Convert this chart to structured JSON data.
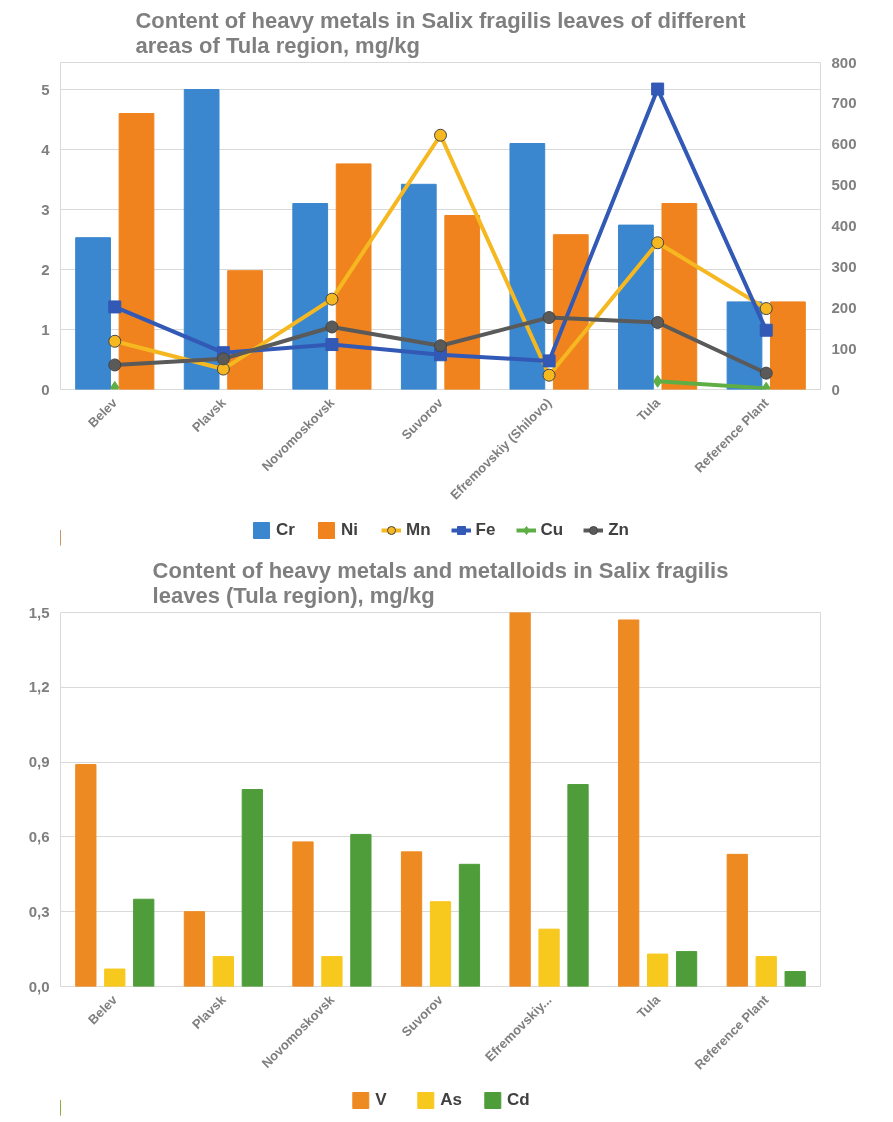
{
  "chart_data": [
    {
      "type": "bar",
      "title": "Content of heavy metals in Salix fragilis leaves of different areas of Tula region, mg/kg",
      "categories": [
        "Belev",
        "Plavsk",
        "Novomoskovsk",
        "Suvorov",
        "Efremovskiy (Shilovo)",
        "Tula",
        "Reference Plant"
      ],
      "series": [
        {
          "name": "Cr",
          "type": "bar",
          "color": "#3a86cf",
          "values": [
            2.53,
            5.0,
            3.1,
            3.42,
            4.1,
            2.74,
            1.46
          ]
        },
        {
          "name": "Ni",
          "type": "bar",
          "color": "#f0831e",
          "values": [
            4.6,
            1.98,
            3.76,
            2.9,
            2.58,
            3.1,
            1.46
          ]
        },
        {
          "name": "Mn",
          "type": "line",
          "axis": "y2",
          "marker": "circle",
          "color": "#f5b820",
          "values": [
            118,
            50,
            221,
            622,
            35,
            359,
            198
          ]
        },
        {
          "name": "Fe",
          "type": "line",
          "axis": "y2",
          "marker": "square",
          "color": "#3259b5",
          "values": [
            202,
            90,
            110,
            85,
            70,
            735,
            145
          ]
        },
        {
          "name": "Cu",
          "type": "line",
          "axis": "y2",
          "marker": "diamond",
          "color": "#5fae45",
          "values": [
            5,
            null,
            null,
            null,
            null,
            20,
            3
          ]
        },
        {
          "name": "Zn",
          "type": "line",
          "axis": "y2",
          "marker": "circle",
          "color": "#5a5a5a",
          "values": [
            60,
            75,
            153,
            107,
            176,
            164,
            40
          ]
        }
      ],
      "ylim": [
        0,
        5.45
      ],
      "yticks": [
        0,
        1,
        2,
        3,
        4,
        5
      ],
      "y2lim": [
        0,
        800
      ],
      "y2ticks": [
        0,
        100,
        200,
        300,
        400,
        500,
        600,
        700,
        800
      ],
      "grid": "y",
      "legend": "bottom"
    },
    {
      "type": "bar",
      "title": "Content of heavy metals and metalloids in Salix fragilis leaves (Tula region), mg/kg",
      "categories": [
        "Belev",
        "Plavsk",
        "Novomoskovsk",
        "Suvorov",
        "Efremovskiy...",
        "Tula",
        "Reference Plant"
      ],
      "series": [
        {
          "name": "V",
          "color": "#ee8a22",
          "values": [
            0.89,
            0.3,
            0.58,
            0.54,
            1.5,
            1.47,
            0.53
          ]
        },
        {
          "name": "As",
          "color": "#f7c81e",
          "values": [
            0.07,
            0.12,
            0.12,
            0.34,
            0.23,
            0.13,
            0.12
          ]
        },
        {
          "name": "Cd",
          "color": "#4f9d3a",
          "values": [
            0.35,
            0.79,
            0.61,
            0.49,
            0.81,
            0.14,
            0.06
          ]
        }
      ],
      "ylim": [
        0,
        1.5
      ],
      "yticks": [
        {
          "value": 0,
          "label": "0,0"
        },
        {
          "value": 0.3,
          "label": "0,3"
        },
        {
          "value": 0.6,
          "label": "0,6"
        },
        {
          "value": 0.9,
          "label": "0,9"
        },
        {
          "value": 1.2,
          "label": "1,2"
        },
        {
          "value": 1.5,
          "label": "1,5"
        }
      ],
      "grid": "y",
      "legend": "bottom"
    }
  ]
}
